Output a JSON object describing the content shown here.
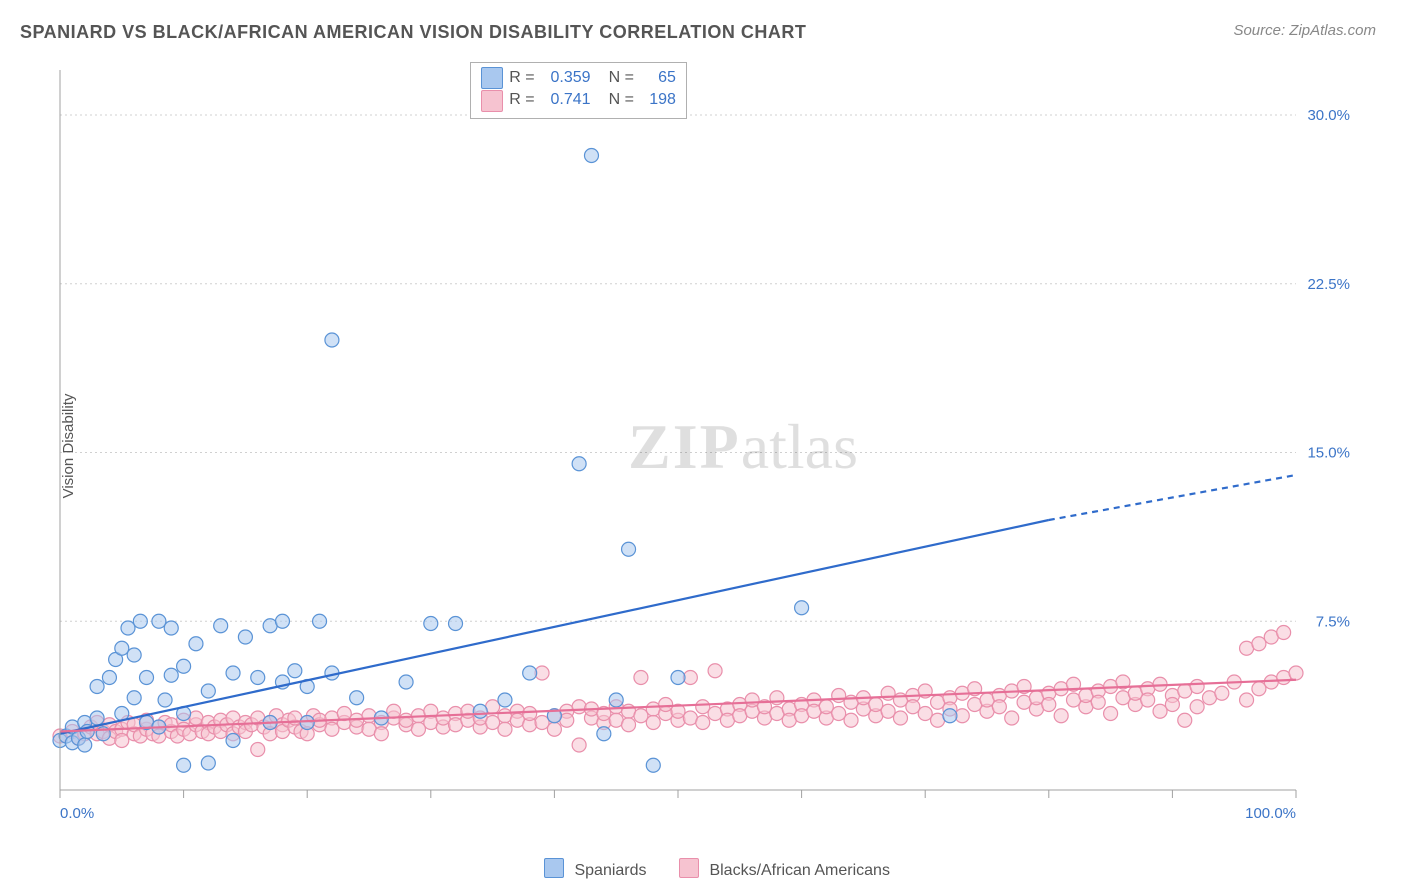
{
  "title": "SPANIARD VS BLACK/AFRICAN AMERICAN VISION DISABILITY CORRELATION CHART",
  "source": "Source: ZipAtlas.com",
  "ylabel": "Vision Disability",
  "watermark": {
    "bold": "ZIP",
    "rest": "atlas"
  },
  "chart": {
    "type": "scatter",
    "xlim": [
      0,
      100
    ],
    "ylim": [
      0,
      32
    ],
    "x_ticks_pct": [
      0,
      10,
      20,
      30,
      40,
      50,
      60,
      70,
      80,
      90,
      100
    ],
    "x_tick_labels": {
      "0": "0.0%",
      "100": "100.0%"
    },
    "y_ticks": [
      7.5,
      15.0,
      22.5,
      30.0
    ],
    "y_tick_labels": [
      "7.5%",
      "15.0%",
      "22.5%",
      "30.0%"
    ],
    "grid_color": "#d0d0d0",
    "axis_color": "#a0a0a0",
    "background_color": "#ffffff",
    "marker_radius": 7,
    "marker_opacity": 0.55,
    "series": [
      {
        "key": "spaniards",
        "label": "Spaniards",
        "fill": "#a9c8ef",
        "stroke": "#5a93d6",
        "trend_color": "#2f6bcb",
        "trend_solid": {
          "x1": 0,
          "y1": 2.5,
          "x2": 80,
          "y2": 12.0
        },
        "trend_dash": {
          "x1": 80,
          "y1": 12.0,
          "x2": 100,
          "y2": 14.0
        },
        "R": "0.359",
        "N": "65",
        "points": [
          [
            0,
            2.2
          ],
          [
            0.5,
            2.4
          ],
          [
            1,
            2.1
          ],
          [
            1,
            2.8
          ],
          [
            1.5,
            2.3
          ],
          [
            2,
            3.0
          ],
          [
            2,
            2.0
          ],
          [
            2.2,
            2.6
          ],
          [
            3,
            4.6
          ],
          [
            3,
            3.2
          ],
          [
            3.5,
            2.5
          ],
          [
            4,
            5.0
          ],
          [
            4.5,
            5.8
          ],
          [
            5,
            6.3
          ],
          [
            5,
            3.4
          ],
          [
            5.5,
            7.2
          ],
          [
            6,
            4.1
          ],
          [
            6,
            6.0
          ],
          [
            6.5,
            7.5
          ],
          [
            7,
            3.0
          ],
          [
            7,
            5.0
          ],
          [
            8,
            2.8
          ],
          [
            8,
            7.5
          ],
          [
            8.5,
            4.0
          ],
          [
            9,
            5.1
          ],
          [
            9,
            7.2
          ],
          [
            10,
            3.4
          ],
          [
            10,
            5.5
          ],
          [
            10,
            1.1
          ],
          [
            11,
            6.5
          ],
          [
            12,
            4.4
          ],
          [
            12,
            1.2
          ],
          [
            13,
            7.3
          ],
          [
            14,
            5.2
          ],
          [
            14,
            2.2
          ],
          [
            15,
            6.8
          ],
          [
            16,
            5.0
          ],
          [
            17,
            7.3
          ],
          [
            17,
            3.0
          ],
          [
            18,
            4.8
          ],
          [
            18,
            7.5
          ],
          [
            19,
            5.3
          ],
          [
            20,
            4.6
          ],
          [
            20,
            3.0
          ],
          [
            21,
            7.5
          ],
          [
            22,
            5.2
          ],
          [
            22,
            20.0
          ],
          [
            24,
            4.1
          ],
          [
            26,
            3.2
          ],
          [
            28,
            4.8
          ],
          [
            30,
            7.4
          ],
          [
            32,
            7.4
          ],
          [
            34,
            3.5
          ],
          [
            36,
            4.0
          ],
          [
            38,
            5.2
          ],
          [
            40,
            3.3
          ],
          [
            42,
            14.5
          ],
          [
            43,
            28.2
          ],
          [
            44,
            2.5
          ],
          [
            45,
            4.0
          ],
          [
            46,
            10.7
          ],
          [
            48,
            1.1
          ],
          [
            50,
            5.0
          ],
          [
            60,
            8.1
          ],
          [
            72,
            3.3
          ]
        ]
      },
      {
        "key": "blacks",
        "label": "Blacks/African Americans",
        "fill": "#f6c3d0",
        "stroke": "#e98fab",
        "trend_color": "#e66f97",
        "trend_solid": {
          "x1": 0,
          "y1": 2.6,
          "x2": 100,
          "y2": 4.9
        },
        "trend_dash": null,
        "R": "0.741",
        "N": "198",
        "points": [
          [
            0,
            2.4
          ],
          [
            1,
            2.6
          ],
          [
            1.5,
            2.3
          ],
          [
            2,
            2.5
          ],
          [
            2.5,
            2.8
          ],
          [
            3,
            2.5
          ],
          [
            3,
            3.0
          ],
          [
            3.5,
            2.6
          ],
          [
            4,
            2.3
          ],
          [
            4,
            2.9
          ],
          [
            4.5,
            2.6
          ],
          [
            5,
            2.7
          ],
          [
            5,
            2.2
          ],
          [
            5.5,
            3.0
          ],
          [
            6,
            2.5
          ],
          [
            6,
            2.9
          ],
          [
            6.5,
            2.4
          ],
          [
            7,
            2.7
          ],
          [
            7,
            3.1
          ],
          [
            7.5,
            2.5
          ],
          [
            8,
            2.8
          ],
          [
            8,
            2.4
          ],
          [
            8.5,
            3.0
          ],
          [
            9,
            2.6
          ],
          [
            9,
            2.9
          ],
          [
            9.5,
            2.4
          ],
          [
            10,
            3.1
          ],
          [
            10,
            2.7
          ],
          [
            10.5,
            2.5
          ],
          [
            11,
            2.9
          ],
          [
            11,
            3.2
          ],
          [
            11.5,
            2.6
          ],
          [
            12,
            3.0
          ],
          [
            12,
            2.5
          ],
          [
            12.5,
            2.8
          ],
          [
            13,
            3.1
          ],
          [
            13,
            2.6
          ],
          [
            13.5,
            2.9
          ],
          [
            14,
            2.5
          ],
          [
            14,
            3.2
          ],
          [
            14.5,
            2.8
          ],
          [
            15,
            3.0
          ],
          [
            15,
            2.6
          ],
          [
            15.5,
            2.9
          ],
          [
            16,
            3.2
          ],
          [
            16,
            1.8
          ],
          [
            16.5,
            2.8
          ],
          [
            17,
            3.0
          ],
          [
            17,
            2.5
          ],
          [
            17.5,
            3.3
          ],
          [
            18,
            2.9
          ],
          [
            18,
            2.6
          ],
          [
            18.5,
            3.1
          ],
          [
            19,
            2.8
          ],
          [
            19,
            3.2
          ],
          [
            19.5,
            2.6
          ],
          [
            20,
            3.0
          ],
          [
            20,
            2.5
          ],
          [
            20.5,
            3.3
          ],
          [
            21,
            2.9
          ],
          [
            21,
            3.1
          ],
          [
            22,
            3.2
          ],
          [
            22,
            2.7
          ],
          [
            23,
            3.0
          ],
          [
            23,
            3.4
          ],
          [
            24,
            2.8
          ],
          [
            24,
            3.1
          ],
          [
            25,
            3.3
          ],
          [
            25,
            2.7
          ],
          [
            26,
            3.0
          ],
          [
            26,
            2.5
          ],
          [
            27,
            3.2
          ],
          [
            27,
            3.5
          ],
          [
            28,
            2.9
          ],
          [
            28,
            3.1
          ],
          [
            29,
            3.3
          ],
          [
            29,
            2.7
          ],
          [
            30,
            3.5
          ],
          [
            30,
            3.0
          ],
          [
            31,
            2.8
          ],
          [
            31,
            3.2
          ],
          [
            32,
            3.4
          ],
          [
            32,
            2.9
          ],
          [
            33,
            3.1
          ],
          [
            33,
            3.5
          ],
          [
            34,
            2.8
          ],
          [
            34,
            3.2
          ],
          [
            35,
            3.7
          ],
          [
            35,
            3.0
          ],
          [
            36,
            3.3
          ],
          [
            36,
            2.7
          ],
          [
            37,
            3.5
          ],
          [
            37,
            3.1
          ],
          [
            38,
            2.9
          ],
          [
            38,
            3.4
          ],
          [
            39,
            5.2
          ],
          [
            39,
            3.0
          ],
          [
            40,
            3.3
          ],
          [
            40,
            2.7
          ],
          [
            41,
            3.5
          ],
          [
            41,
            3.1
          ],
          [
            42,
            3.7
          ],
          [
            42,
            2.0
          ],
          [
            43,
            3.2
          ],
          [
            43,
            3.6
          ],
          [
            44,
            3.0
          ],
          [
            44,
            3.4
          ],
          [
            45,
            3.7
          ],
          [
            45,
            3.1
          ],
          [
            46,
            3.5
          ],
          [
            46,
            2.9
          ],
          [
            47,
            3.3
          ],
          [
            47,
            5.0
          ],
          [
            48,
            3.6
          ],
          [
            48,
            3.0
          ],
          [
            49,
            3.4
          ],
          [
            49,
            3.8
          ],
          [
            50,
            3.1
          ],
          [
            50,
            3.5
          ],
          [
            51,
            5.0
          ],
          [
            51,
            3.2
          ],
          [
            52,
            3.7
          ],
          [
            52,
            3.0
          ],
          [
            53,
            3.4
          ],
          [
            53,
            5.3
          ],
          [
            54,
            3.6
          ],
          [
            54,
            3.1
          ],
          [
            55,
            3.8
          ],
          [
            55,
            3.3
          ],
          [
            56,
            3.5
          ],
          [
            56,
            4.0
          ],
          [
            57,
            3.2
          ],
          [
            57,
            3.7
          ],
          [
            58,
            3.4
          ],
          [
            58,
            4.1
          ],
          [
            59,
            3.6
          ],
          [
            59,
            3.1
          ],
          [
            60,
            3.8
          ],
          [
            60,
            3.3
          ],
          [
            61,
            4.0
          ],
          [
            61,
            3.5
          ],
          [
            62,
            3.2
          ],
          [
            62,
            3.7
          ],
          [
            63,
            4.2
          ],
          [
            63,
            3.4
          ],
          [
            64,
            3.9
          ],
          [
            64,
            3.1
          ],
          [
            65,
            3.6
          ],
          [
            65,
            4.1
          ],
          [
            66,
            3.3
          ],
          [
            66,
            3.8
          ],
          [
            67,
            4.3
          ],
          [
            67,
            3.5
          ],
          [
            68,
            4.0
          ],
          [
            68,
            3.2
          ],
          [
            69,
            4.2
          ],
          [
            69,
            3.7
          ],
          [
            70,
            3.4
          ],
          [
            70,
            4.4
          ],
          [
            71,
            3.9
          ],
          [
            71,
            3.1
          ],
          [
            72,
            4.1
          ],
          [
            72,
            3.6
          ],
          [
            73,
            4.3
          ],
          [
            73,
            3.3
          ],
          [
            74,
            3.8
          ],
          [
            74,
            4.5
          ],
          [
            75,
            3.5
          ],
          [
            75,
            4.0
          ],
          [
            76,
            4.2
          ],
          [
            76,
            3.7
          ],
          [
            77,
            4.4
          ],
          [
            77,
            3.2
          ],
          [
            78,
            3.9
          ],
          [
            78,
            4.6
          ],
          [
            79,
            3.6
          ],
          [
            79,
            4.1
          ],
          [
            80,
            4.3
          ],
          [
            80,
            3.8
          ],
          [
            81,
            4.5
          ],
          [
            81,
            3.3
          ],
          [
            82,
            4.0
          ],
          [
            82,
            4.7
          ],
          [
            83,
            3.7
          ],
          [
            83,
            4.2
          ],
          [
            84,
            4.4
          ],
          [
            84,
            3.9
          ],
          [
            85,
            4.6
          ],
          [
            85,
            3.4
          ],
          [
            86,
            4.1
          ],
          [
            86,
            4.8
          ],
          [
            87,
            3.8
          ],
          [
            87,
            4.3
          ],
          [
            88,
            4.5
          ],
          [
            88,
            4.0
          ],
          [
            89,
            4.7
          ],
          [
            89,
            3.5
          ],
          [
            90,
            4.2
          ],
          [
            90,
            3.8
          ],
          [
            91,
            4.4
          ],
          [
            91,
            3.1
          ],
          [
            92,
            4.6
          ],
          [
            92,
            3.7
          ],
          [
            93,
            4.1
          ],
          [
            94,
            4.3
          ],
          [
            95,
            4.8
          ],
          [
            96,
            4.0
          ],
          [
            96,
            6.3
          ],
          [
            97,
            4.5
          ],
          [
            97,
            6.5
          ],
          [
            98,
            4.8
          ],
          [
            98,
            6.8
          ],
          [
            99,
            5.0
          ],
          [
            99,
            7.0
          ],
          [
            100,
            5.2
          ]
        ]
      }
    ]
  },
  "stats_box": {
    "rows": [
      {
        "series_key": "spaniards",
        "R_label": "R =",
        "N_label": "N ="
      },
      {
        "series_key": "blacks",
        "R_label": "R =",
        "N_label": "N ="
      }
    ]
  }
}
